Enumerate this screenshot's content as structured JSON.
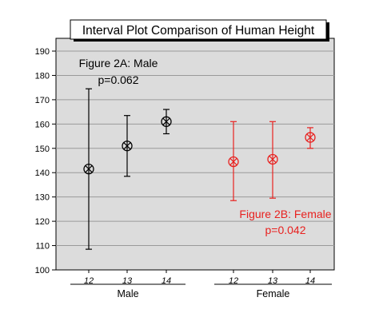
{
  "chart_data": {
    "type": "interval",
    "title": "Interval Plot Comparison of Human Height",
    "xlabel": "",
    "ylabel": "",
    "ylim": [
      100,
      190
    ],
    "yticks": [
      100,
      110,
      120,
      130,
      140,
      150,
      160,
      170,
      180,
      190
    ],
    "grid": true,
    "groups": [
      {
        "name": "Male",
        "color": "#000000",
        "annotation": [
          "Figure 2A: Male",
          "p=0.062"
        ],
        "points": [
          {
            "x": "12",
            "mean": 141.5,
            "low": 108.5,
            "high": 174.5
          },
          {
            "x": "13",
            "mean": 151.0,
            "low": 138.5,
            "high": 163.5
          },
          {
            "x": "14",
            "mean": 161.0,
            "low": 156.0,
            "high": 166.0
          }
        ]
      },
      {
        "name": "Female",
        "color": "#e8211f",
        "annotation": [
          "Figure 2B: Female",
          "p=0.042"
        ],
        "points": [
          {
            "x": "12",
            "mean": 144.5,
            "low": 128.5,
            "high": 161.0
          },
          {
            "x": "13",
            "mean": 145.5,
            "low": 129.5,
            "high": 161.0
          },
          {
            "x": "14",
            "mean": 154.5,
            "low": 150.0,
            "high": 158.5
          }
        ]
      }
    ]
  }
}
